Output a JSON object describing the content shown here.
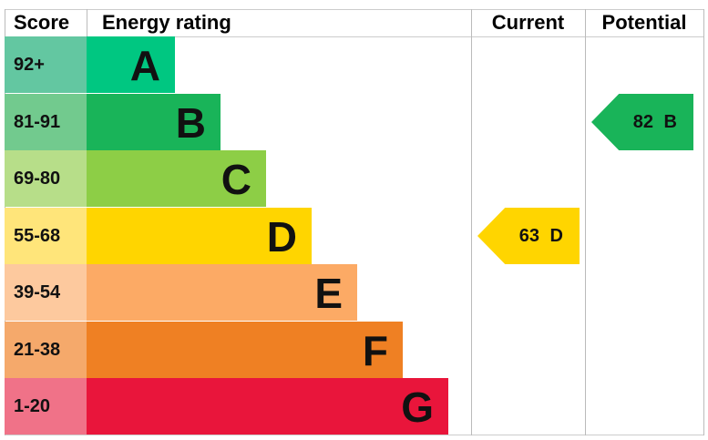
{
  "headers": {
    "score": "Score",
    "rating": "Energy rating",
    "current": "Current",
    "potential": "Potential"
  },
  "chart_data": {
    "type": "bar",
    "bands": [
      {
        "score": "92+",
        "letter": "A",
        "color": "#00c781",
        "score_color": "#63c7a1"
      },
      {
        "score": "81-91",
        "letter": "B",
        "color": "#19b459",
        "score_color": "#72ca8e"
      },
      {
        "score": "69-80",
        "letter": "C",
        "color": "#8dce46",
        "score_color": "#b7de89"
      },
      {
        "score": "55-68",
        "letter": "D",
        "color": "#ffd500",
        "score_color": "#ffe57a"
      },
      {
        "score": "39-54",
        "letter": "E",
        "color": "#fcaa65",
        "score_color": "#fdc99e"
      },
      {
        "score": "21-38",
        "letter": "F",
        "color": "#ef8023",
        "score_color": "#f5a96b"
      },
      {
        "score": "1-20",
        "letter": "G",
        "color": "#e9153b",
        "score_color": "#f07288"
      }
    ],
    "current": {
      "value": 63,
      "letter": "D",
      "label": "63 D",
      "color": "#ffd500"
    },
    "potential": {
      "value": 82,
      "letter": "B",
      "label": "82 B",
      "color": "#19b459"
    }
  }
}
